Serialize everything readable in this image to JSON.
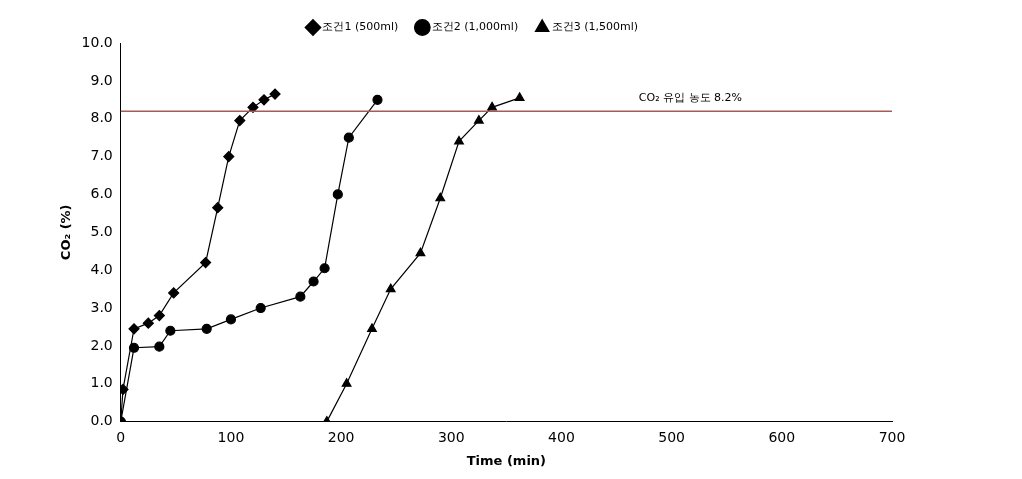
{
  "chart_data": {
    "type": "line",
    "x_label": "Time (min)",
    "y_label": "CO₂ (%)",
    "xlim": [
      0,
      700
    ],
    "xticks": [
      0,
      100,
      200,
      300,
      400,
      500,
      600,
      700
    ],
    "ylim": [
      0,
      10
    ],
    "yticks": [
      {
        "value": 0,
        "label": "0.0"
      },
      {
        "value": 1,
        "label": "1.0"
      },
      {
        "value": 2,
        "label": "2.0"
      },
      {
        "value": 3,
        "label": "3.0"
      },
      {
        "value": 4,
        "label": "4.0"
      },
      {
        "value": 5,
        "label": "5.0"
      },
      {
        "value": 6,
        "label": "6.0"
      },
      {
        "value": 7,
        "label": "7.0"
      },
      {
        "value": 8,
        "label": "8.0"
      },
      {
        "value": 9,
        "label": "9.0"
      },
      {
        "value": 10,
        "label": "10.0"
      }
    ],
    "grid": false,
    "legend": "top",
    "series": [
      {
        "name": "조건1 (500ml)",
        "color": "#000000",
        "marker": "diamond",
        "x": [
          0,
          2,
          12,
          25,
          35,
          48,
          77,
          88,
          98,
          108,
          120,
          130,
          140
        ],
        "values": [
          0,
          0.85,
          2.45,
          2.6,
          2.8,
          3.4,
          4.2,
          5.65,
          7.0,
          7.95,
          8.3,
          8.5,
          8.65
        ]
      },
      {
        "name": "조건2 (1,000ml)",
        "color": "#000000",
        "marker": "circle",
        "x": [
          0,
          12,
          35,
          45,
          78,
          100,
          127,
          163,
          175,
          185,
          197,
          207,
          233
        ],
        "values": [
          0,
          1.95,
          1.98,
          2.4,
          2.45,
          2.7,
          3.0,
          3.3,
          3.7,
          4.05,
          6.0,
          7.5,
          8.5
        ]
      },
      {
        "name": "조건3 (1,500ml)",
        "color": "#000000",
        "marker": "triangle",
        "x": [
          187,
          205,
          228,
          245,
          272,
          290,
          307,
          325,
          337,
          362
        ],
        "values": [
          0,
          1.0,
          2.45,
          3.5,
          4.45,
          5.9,
          7.4,
          7.95,
          8.3,
          8.55
        ]
      }
    ],
    "annotations": [
      {
        "text": "CO₂ 유입 농도 8.2%",
        "y": 8.2,
        "color": "#c0504d"
      }
    ]
  }
}
